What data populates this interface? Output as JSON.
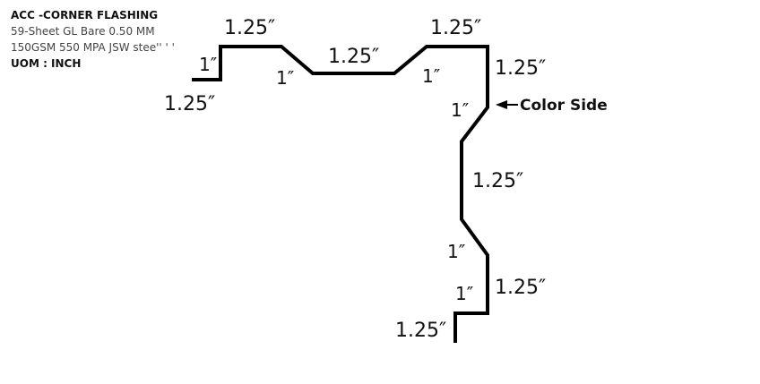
{
  "info": {
    "title": "ACC -CORNER FLASHING",
    "material": "59-Sheet GL Bare 0.50 MM",
    "spec": "150GSM 550 MPA JSW stee'' ' '",
    "uom": "UOM : INCH"
  },
  "dimensions": {
    "left_flange": "1.25″",
    "left_riser": "1″",
    "top_left": "1.25″",
    "slope_left": "1″",
    "top_middle": "1.25″",
    "slope_right": "1″",
    "top_right": "1.25″",
    "right_upper_vertical": "1.25″",
    "diag_upper": "1″",
    "middle_vertical": "1.25″",
    "diag_lower": "1″",
    "right_lower_vertical": "1.25″",
    "bottom_riser": "1″",
    "bottom_flange": "1.25″"
  },
  "callout": {
    "color_side": "Color Side"
  },
  "colors": {
    "line": "#000000",
    "text": "#111111"
  }
}
